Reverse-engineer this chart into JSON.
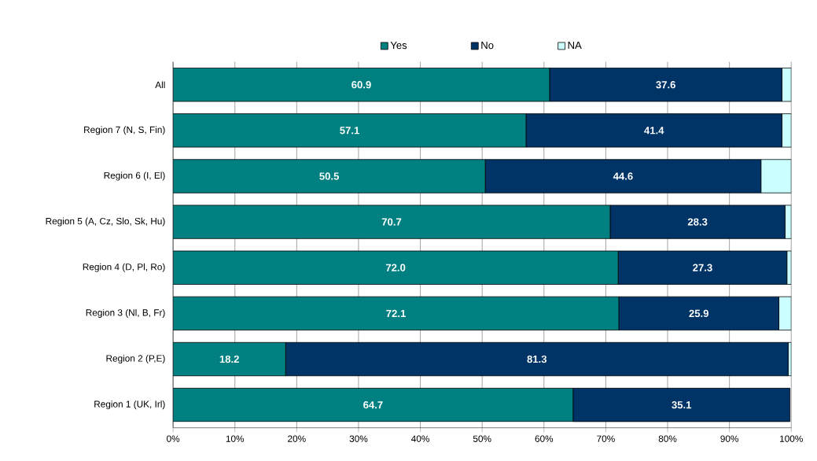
{
  "chart_data": {
    "type": "bar",
    "orientation": "horizontal",
    "stacked": true,
    "categories": [
      "All",
      "Region 7 (N, S, Fin)",
      "Region 6 (I, El)",
      "Region 5 (A, Cz, Slo, Sk, Hu)",
      "Region 4 (D, Pl, Ro)",
      "Region 3 (Nl, B, Fr)",
      "Region 2 (P,E)",
      "Region 1 (UK, Irl)"
    ],
    "series": [
      {
        "name": "Yes",
        "color": "#008080",
        "values": [
          60.9,
          57.1,
          50.5,
          70.7,
          72.0,
          72.1,
          18.2,
          64.7
        ],
        "value_labels": [
          "60.9",
          "57.1",
          "50.5",
          "70.7",
          "72.0",
          "72.1",
          "18.2",
          "64.7"
        ]
      },
      {
        "name": "No",
        "color": "#003366",
        "values": [
          37.6,
          41.4,
          44.6,
          28.3,
          27.3,
          25.9,
          81.3,
          35.1
        ],
        "value_labels": [
          "37.6",
          "41.4",
          "44.6",
          "28.3",
          "27.3",
          "25.9",
          "81.3",
          "35.1"
        ]
      },
      {
        "name": "NA",
        "color": "#ccffff",
        "values": [
          1.5,
          1.5,
          4.9,
          1.0,
          0.7,
          2.0,
          0.5,
          null
        ],
        "value_labels": [
          null,
          null,
          null,
          null,
          null,
          null,
          null,
          null
        ]
      }
    ],
    "xlim": [
      0,
      100
    ],
    "xticks": [
      {
        "value": 0,
        "label": "0%"
      },
      {
        "value": 10,
        "label": "10%"
      },
      {
        "value": 20,
        "label": "20%"
      },
      {
        "value": 30,
        "label": "30%"
      },
      {
        "value": 40,
        "label": "40%"
      },
      {
        "value": 50,
        "label": "50%"
      },
      {
        "value": 60,
        "label": "60%"
      },
      {
        "value": 70,
        "label": "70%"
      },
      {
        "value": 80,
        "label": "80%"
      },
      {
        "value": 90,
        "label": "90%"
      },
      {
        "value": 100,
        "label": "100%"
      }
    ],
    "grid": "x",
    "legend": "top"
  }
}
